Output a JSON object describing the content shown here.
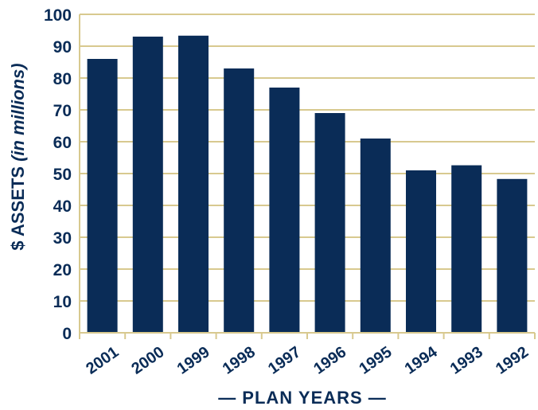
{
  "chart_data": {
    "type": "bar",
    "categories": [
      "2001",
      "2000",
      "1999",
      "1998",
      "1997",
      "1996",
      "1995",
      "1994",
      "1993",
      "1992"
    ],
    "values": [
      86,
      93,
      93.3,
      83,
      77,
      69,
      61,
      51,
      52.6,
      48.3
    ],
    "xlabel": "— PLAN YEARS —",
    "ylabel_main": "$ ASSETS ",
    "ylabel_italic": "(in millions)",
    "ylim": [
      0,
      100
    ],
    "yticks": [
      0,
      10,
      20,
      30,
      40,
      50,
      60,
      70,
      80,
      90,
      100
    ],
    "grid": true,
    "colors": {
      "bar": "#0a2c57",
      "grid": "#d8c98f",
      "text": "#0a2c57"
    }
  }
}
